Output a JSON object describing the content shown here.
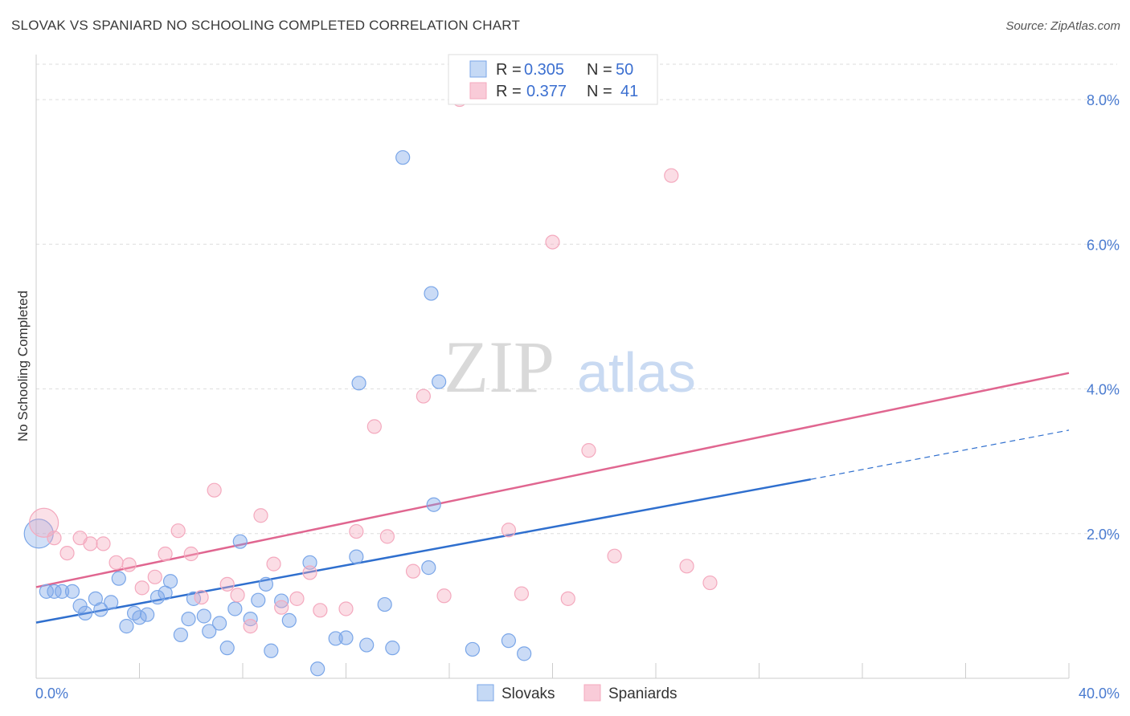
{
  "header": {
    "title": "SLOVAK VS SPANIARD NO SCHOOLING COMPLETED CORRELATION CHART",
    "source": "Source: ZipAtlas.com"
  },
  "watermark": {
    "zip": "ZIP",
    "atlas": "atlas"
  },
  "chart_data": {
    "type": "scatter",
    "xlabel": "",
    "ylabel": "No Schooling Completed",
    "xlim": [
      0,
      40
    ],
    "ylim": [
      0,
      8.6
    ],
    "x_tick_labels": {
      "min": "0.0%",
      "max": "40.0%"
    },
    "y_ticks": [
      {
        "value": 2,
        "label": "2.0%"
      },
      {
        "value": 4,
        "label": "4.0%"
      },
      {
        "value": 6,
        "label": "6.0%"
      },
      {
        "value": 8,
        "label": "8.0%"
      }
    ],
    "grid": true,
    "legend_position": "top-center",
    "stats": [
      {
        "r_label": "R =",
        "r_value": "0.305",
        "n_label": "N =",
        "n_value": "50"
      },
      {
        "r_label": "R =",
        "r_value": "0.377",
        "n_label": "N =",
        "n_value": "41"
      }
    ],
    "series": [
      {
        "name": "Slovaks",
        "color": "#7aa6e8",
        "line_color": "#2f6fce",
        "trend": {
          "x0": 0,
          "y0": 0.77,
          "x1": 30,
          "y1": 2.75,
          "dash_x1": 40,
          "dash_y1": 3.43
        },
        "points": [
          [
            0.1,
            2.0
          ],
          [
            0.4,
            1.2
          ],
          [
            0.7,
            1.2
          ],
          [
            1.0,
            1.2
          ],
          [
            1.4,
            1.2
          ],
          [
            1.7,
            1.0
          ],
          [
            1.9,
            0.9
          ],
          [
            2.3,
            1.1
          ],
          [
            2.5,
            0.95
          ],
          [
            2.9,
            1.05
          ],
          [
            3.2,
            1.38
          ],
          [
            3.5,
            0.72
          ],
          [
            3.8,
            0.9
          ],
          [
            4.0,
            0.84
          ],
          [
            4.3,
            0.88
          ],
          [
            4.7,
            1.12
          ],
          [
            5.0,
            1.18
          ],
          [
            5.2,
            1.34
          ],
          [
            5.6,
            0.6
          ],
          [
            5.9,
            0.82
          ],
          [
            6.1,
            1.1
          ],
          [
            6.5,
            0.86
          ],
          [
            6.7,
            0.65
          ],
          [
            7.1,
            0.76
          ],
          [
            7.4,
            0.42
          ],
          [
            7.7,
            0.96
          ],
          [
            7.9,
            1.89
          ],
          [
            8.3,
            0.82
          ],
          [
            8.6,
            1.08
          ],
          [
            8.9,
            1.3
          ],
          [
            9.1,
            0.38
          ],
          [
            9.5,
            1.07
          ],
          [
            9.8,
            0.8
          ],
          [
            10.6,
            1.6
          ],
          [
            10.9,
            0.13
          ],
          [
            11.6,
            0.55
          ],
          [
            12.0,
            0.56
          ],
          [
            12.4,
            1.68
          ],
          [
            12.5,
            4.08
          ],
          [
            12.8,
            0.46
          ],
          [
            13.5,
            1.02
          ],
          [
            13.8,
            0.42
          ],
          [
            14.2,
            7.2
          ],
          [
            15.2,
            1.53
          ],
          [
            15.3,
            5.32
          ],
          [
            15.4,
            2.4
          ],
          [
            15.6,
            4.1
          ],
          [
            16.9,
            0.4
          ],
          [
            18.3,
            0.52
          ],
          [
            18.9,
            0.34
          ]
        ]
      },
      {
        "name": "Spaniards",
        "color": "#f4a9be",
        "line_color": "#e06690",
        "trend": {
          "x0": 0,
          "y0": 1.26,
          "x1": 40,
          "y1": 4.22
        },
        "points": [
          [
            0.3,
            2.15
          ],
          [
            0.7,
            1.94
          ],
          [
            1.2,
            1.73
          ],
          [
            1.7,
            1.94
          ],
          [
            2.1,
            1.86
          ],
          [
            2.6,
            1.86
          ],
          [
            3.1,
            1.6
          ],
          [
            3.6,
            1.57
          ],
          [
            4.1,
            1.25
          ],
          [
            4.6,
            1.4
          ],
          [
            5.0,
            1.72
          ],
          [
            5.5,
            2.04
          ],
          [
            6.0,
            1.72
          ],
          [
            6.4,
            1.12
          ],
          [
            6.9,
            2.6
          ],
          [
            7.4,
            1.3
          ],
          [
            7.8,
            1.15
          ],
          [
            8.3,
            0.72
          ],
          [
            8.7,
            2.25
          ],
          [
            9.2,
            1.58
          ],
          [
            9.5,
            0.98
          ],
          [
            10.1,
            1.1
          ],
          [
            10.6,
            1.46
          ],
          [
            11.0,
            0.94
          ],
          [
            12.0,
            0.96
          ],
          [
            12.4,
            2.03
          ],
          [
            13.1,
            3.48
          ],
          [
            13.6,
            1.96
          ],
          [
            14.6,
            1.48
          ],
          [
            15.0,
            3.9
          ],
          [
            15.8,
            1.14
          ],
          [
            16.4,
            8.0
          ],
          [
            18.3,
            2.05
          ],
          [
            18.8,
            1.17
          ],
          [
            20.0,
            6.03
          ],
          [
            20.6,
            1.1
          ],
          [
            21.4,
            3.15
          ],
          [
            22.4,
            1.69
          ],
          [
            24.6,
            6.95
          ],
          [
            25.2,
            1.55
          ],
          [
            26.1,
            1.32
          ]
        ]
      }
    ]
  }
}
